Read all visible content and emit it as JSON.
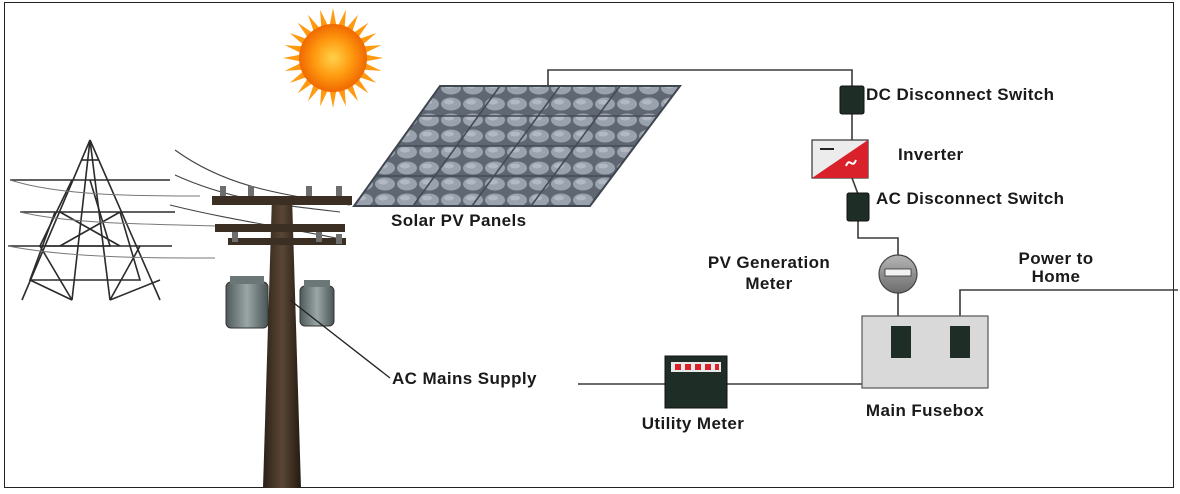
{
  "labels": {
    "solar_panels": "Solar PV Panels",
    "dc_switch": "DC Disconnect Switch",
    "inverter": "Inverter",
    "ac_switch": "AC Disconnect Switch",
    "pv_meter_line1": "PV Generation",
    "pv_meter_line2": "Meter",
    "power_home_line1": "Power to",
    "power_home_line2": "Home",
    "main_fusebox": "Main Fusebox",
    "utility_meter": "Utility Meter",
    "ac_mains": "AC Mains Supply"
  },
  "icons": {
    "sun": "sun-icon",
    "pylon": "transmission-tower-icon",
    "pole": "utility-pole-icon"
  },
  "colors": {
    "sun_core": "#ff8a00",
    "sun_rays": "#ff9a10",
    "panel_cell": "#8c95a3",
    "panel_frame": "#5e6672",
    "inverter_red": "#d8212a",
    "switch_dark": "#1f2d27",
    "fusebox": "#d9d9d9",
    "meter_grey": "#8a8a8a",
    "wire": "#333333"
  }
}
